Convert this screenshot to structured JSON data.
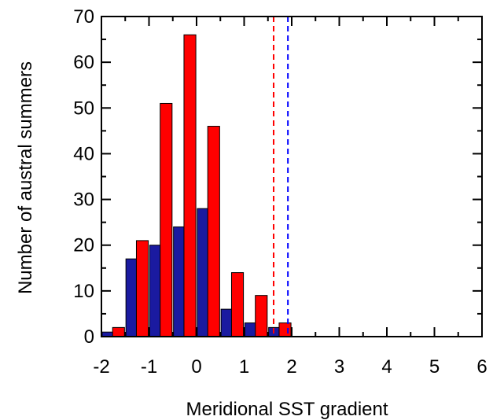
{
  "chart_data": {
    "type": "bar",
    "title": "",
    "xlabel": "Meridional SST gradient",
    "ylabel": "Number of austral summers",
    "xlim": [
      -2,
      6
    ],
    "ylim": [
      0,
      70
    ],
    "x_ticks": [
      "-2",
      "-1",
      "0",
      "1",
      "2",
      "3",
      "4",
      "5",
      "6"
    ],
    "y_ticks": [
      "0",
      "10",
      "20",
      "30",
      "40",
      "50",
      "60",
      "70"
    ],
    "bin_width": 0.5,
    "series": [
      {
        "color": "#1a1aa0",
        "bin_starts": [
          -2.0,
          -1.5,
          -1.0,
          -0.5,
          0.0,
          0.5,
          1.0,
          1.5
        ],
        "values": [
          1,
          17,
          20,
          24,
          28,
          6,
          3,
          2
        ]
      },
      {
        "color": "#ff0000",
        "bin_starts": [
          -2.0,
          -1.5,
          -1.0,
          -0.5,
          0.0,
          0.5,
          1.0,
          1.5
        ],
        "values": [
          2,
          21,
          51,
          66,
          46,
          14,
          9,
          3
        ]
      }
    ],
    "reference_lines": [
      {
        "x": 1.62,
        "color": "#ff0000",
        "style": "dashed"
      },
      {
        "x": 1.92,
        "color": "#0000ff",
        "style": "dashed"
      }
    ],
    "grid": false,
    "legend": "none"
  }
}
